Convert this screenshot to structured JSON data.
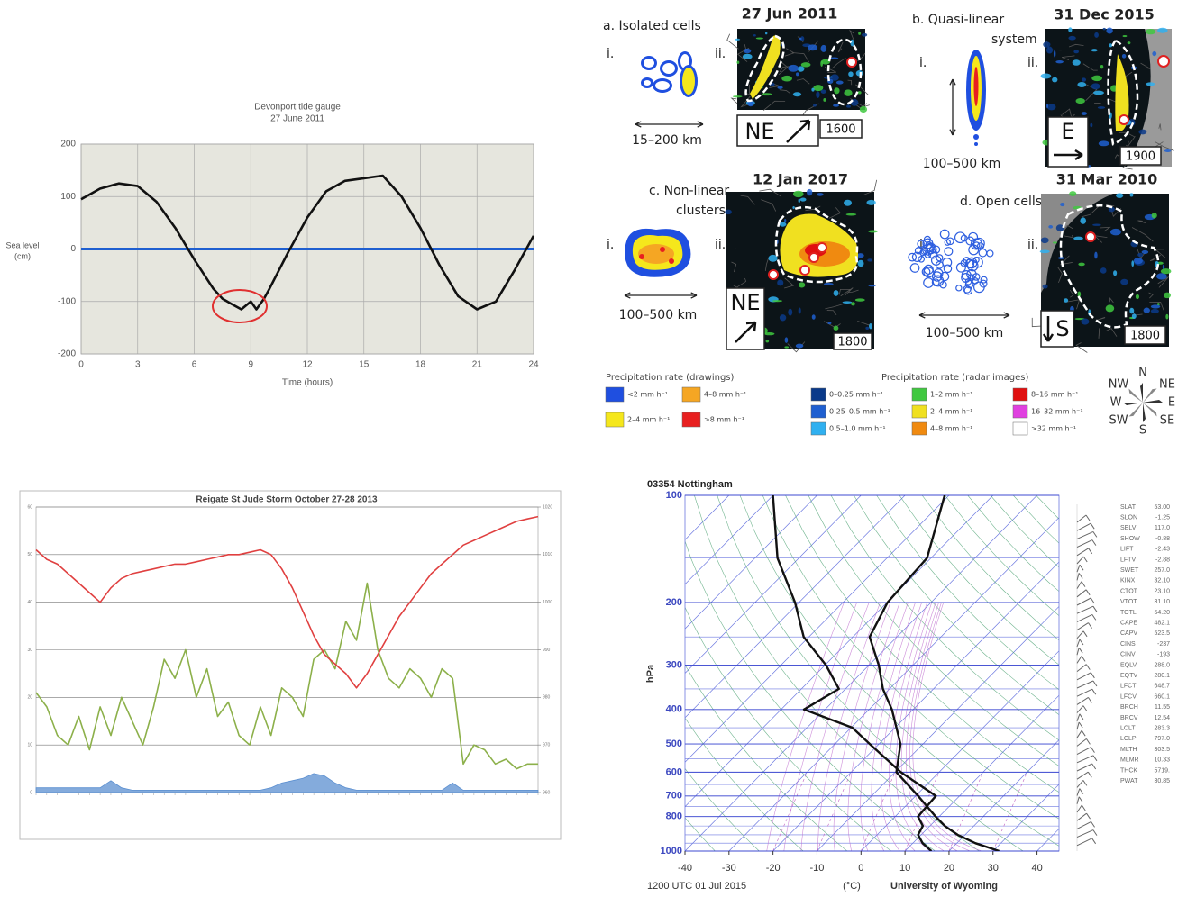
{
  "chart_data": [
    {
      "type": "line",
      "title": "Devonport tide gauge",
      "subtitle": "27 June 2011",
      "xlabel": "Time (hours)",
      "ylabel_lines": [
        "Sea level",
        "(cm)"
      ],
      "x": [
        0,
        1,
        2,
        3,
        4,
        5,
        6,
        7,
        7.5,
        8,
        8.5,
        9,
        9.3,
        9.7,
        10,
        11,
        12,
        13,
        14,
        15,
        16,
        17,
        18,
        19,
        20,
        21,
        22,
        23,
        24
      ],
      "series": [
        {
          "color": "#111111",
          "values": [
            95,
            115,
            125,
            120,
            90,
            40,
            -20,
            -75,
            -95,
            -105,
            -115,
            -100,
            -115,
            -95,
            -75,
            -5,
            60,
            110,
            130,
            135,
            140,
            100,
            40,
            -30,
            -90,
            -115,
            -100,
            -40,
            25
          ]
        }
      ],
      "reference_line": {
        "value": 0,
        "color": "#1f5fd0"
      },
      "xlim": [
        0,
        24
      ],
      "ylim": [
        -200,
        200
      ],
      "xticks": [
        0,
        3,
        6,
        9,
        12,
        15,
        18,
        21,
        24
      ],
      "yticks": [
        -200,
        -100,
        0,
        100,
        200
      ],
      "grid": true
    },
    {
      "type": "line",
      "title": "Reigate St Jude Storm October 27-28 2013",
      "categories": [
        null,
        null,
        null,
        null,
        null,
        null,
        null,
        null,
        null,
        null,
        null,
        null,
        null,
        null,
        null,
        null,
        null,
        null,
        null,
        null,
        null,
        null,
        null,
        null,
        null,
        null,
        null,
        null,
        null,
        null,
        null,
        null,
        null,
        null,
        null,
        null,
        null,
        null,
        null,
        null,
        null,
        null,
        null,
        null,
        null,
        null,
        null,
        null
      ],
      "series": [
        {
          "color": "#8cb04a",
          "values": [
            21,
            18,
            12,
            10,
            16,
            9,
            18,
            12,
            20,
            15,
            10,
            18,
            28,
            24,
            30,
            20,
            26,
            16,
            19,
            12,
            10,
            18,
            12,
            22,
            20,
            16,
            28,
            30,
            26,
            36,
            32,
            44,
            30,
            24,
            22,
            26,
            24,
            20,
            26,
            24,
            6,
            10,
            9,
            6,
            7,
            5,
            6,
            6
          ]
        },
        {
          "color": "#e04040",
          "axis": "y2",
          "values": [
            1011,
            1009,
            1008,
            1006,
            1004,
            1002,
            1000,
            1003,
            1005,
            1006,
            1006.5,
            1007,
            1007.5,
            1008,
            1008,
            1008.5,
            1009,
            1009.5,
            1010,
            1010,
            1010.5,
            1011,
            1010,
            1007,
            1003,
            998,
            993,
            989,
            987,
            985,
            982,
            985,
            989,
            993,
            997,
            1000,
            1003,
            1006,
            1008,
            1010,
            1012,
            1013,
            1014,
            1015,
            1016,
            1017,
            1017.5,
            1018
          ]
        },
        {
          "color": "#5b8fd0",
          "fill": true,
          "values": [
            1,
            1,
            1,
            1,
            1,
            1,
            1,
            2.5,
            1,
            0.5,
            0.5,
            0.5,
            0.5,
            0.5,
            0.5,
            0.5,
            0.5,
            0.5,
            0.5,
            0.5,
            0.5,
            0.5,
            1,
            2,
            2.5,
            3,
            4,
            3.5,
            2,
            1,
            0.5,
            0.5,
            0.5,
            0.5,
            0.5,
            0.5,
            0.5,
            0.5,
            0.5,
            2,
            0.5,
            0.5,
            0.5,
            0.5,
            0.5,
            0.5,
            0.5,
            0.5
          ]
        }
      ],
      "ylim": [
        0,
        60
      ],
      "yticks": [
        0,
        10,
        20,
        30,
        40,
        50,
        60
      ],
      "y2lim": [
        960,
        1020
      ],
      "y2ticks": [
        960,
        970,
        980,
        990,
        1000,
        1010,
        1020
      ],
      "grid": true
    },
    {
      "type": "skewt",
      "title": "03354 Nottingham",
      "ylabel": "hPa",
      "xlabel": "(°C)",
      "footer_left": "1200 UTC 01 Jul 2015",
      "footer_right": "University of Wyoming",
      "y": [
        1000,
        950,
        900,
        850,
        800,
        700,
        600,
        500,
        450,
        400,
        350,
        300,
        250,
        200,
        150,
        100
      ],
      "series": [
        {
          "color": "#111111",
          "values": [
            31.4,
            24.2,
            18.3,
            13.4,
            9.2,
            0.6,
            -9.7,
            -15.1,
            -19.7,
            -24.8,
            -31.5,
            -37.8,
            -46.2,
            -49.9,
            -50.9,
            -61
          ]
        },
        {
          "color": "#111111",
          "values": [
            16,
            12.2,
            9.3,
            8.4,
            5.2,
            4.6,
            -8.7,
            -22.1,
            -29.7,
            -44.8,
            -41.5,
            -49.8,
            -61.2,
            -70.9,
            -84.9,
            -100
          ]
        }
      ],
      "xlim": [
        -40,
        45
      ],
      "ylim": [
        1000,
        100
      ],
      "log_y": true,
      "xticks": [
        -40,
        -30,
        -20,
        -10,
        0,
        10,
        20,
        30,
        40
      ],
      "yticks": [
        100,
        200,
        300,
        400,
        500,
        600,
        700,
        800,
        1000
      ],
      "grid": true
    }
  ],
  "sounding_indices": {
    "names": [
      "SLAT",
      "SLON",
      "SELV",
      "SHOW",
      "LIFT",
      "LFTV",
      "SWET",
      "KINX",
      "CTOT",
      "VTOT",
      "TOTL",
      "CAPE",
      "CAPV",
      "CINS",
      "CINV",
      "EQLV",
      "EQTV",
      "LFCT",
      "LFCV",
      "BRCH",
      "BRCV",
      "LCLT",
      "LCLP",
      "MLTH",
      "MLMR",
      "THCK",
      "PWAT"
    ],
    "values": [
      "53.00",
      "-1.25",
      "117.0",
      "-0.88",
      "-2.43",
      "-2.88",
      "257.0",
      "32.10",
      "23.10",
      "31.10",
      "54.20",
      "482.1",
      "523.5",
      "-237",
      "-193",
      "288.0",
      "280.1",
      "648.7",
      "660.1",
      "11.55",
      "12.54",
      "283.3",
      "797.0",
      "303.5",
      "10.33",
      "5719.",
      "30.85"
    ]
  },
  "storm_figure": {
    "panels": [
      {
        "title_lines": [
          "a. Isolated cells"
        ],
        "drawing_label": "i.",
        "radar_label": "ii.",
        "date": "27 Jun 2011",
        "scale": "15–200 km",
        "direction": "NE",
        "time": "1600"
      },
      {
        "title_lines": [
          "b. Quasi-linear",
          "system"
        ],
        "drawing_label": "i.",
        "radar_label": "ii.",
        "date": "31 Dec 2015",
        "scale": "100–500 km",
        "direction": "E",
        "time": "1900"
      },
      {
        "title_lines": [
          "c. Non-linear",
          "clusters"
        ],
        "drawing_label": "i.",
        "radar_label": "ii.",
        "date": "12 Jan 2017",
        "scale": "100–500 km",
        "direction": "NE",
        "time": "1800"
      },
      {
        "title_lines": [
          "d. Open cells"
        ],
        "drawing_label": "i.",
        "radar_label": "ii.",
        "date": "31 Mar 2010",
        "scale": "100–500 km",
        "direction": "S",
        "time": "1800"
      }
    ],
    "legend_drawings": {
      "title": "Precipitation rate (drawings)",
      "entries": [
        {
          "label": "<2 mm h⁻¹",
          "color": "#1f4fe0"
        },
        {
          "label": "2–4 mm h⁻¹",
          "color": "#f5e71c"
        },
        {
          "label": "4–8 mm h⁻¹",
          "color": "#f5a623"
        },
        {
          "label": ">8 mm h⁻¹",
          "color": "#e82020"
        }
      ]
    },
    "legend_radar": {
      "title": "Precipitation rate (radar images)",
      "entries": [
        {
          "label": "0–0.25 mm h⁻¹",
          "color": "#0a3a8a"
        },
        {
          "label": "0.25–0.5 mm h⁻¹",
          "color": "#1f5fd0"
        },
        {
          "label": "0.5–1.0 mm h⁻¹",
          "color": "#30b0f0"
        },
        {
          "label": "1–2 mm h⁻¹",
          "color": "#40c840"
        },
        {
          "label": "2–4 mm h⁻¹",
          "color": "#f0e020"
        },
        {
          "label": "4–8 mm h⁻¹",
          "color": "#f08a10"
        },
        {
          "label": "8–16 mm h⁻¹",
          "color": "#e01010"
        },
        {
          "label": "16–32 mm h⁻¹",
          "color": "#e040e0"
        },
        {
          "label": ">32 mm h⁻¹",
          "color": "#ffffff"
        }
      ]
    },
    "compass": [
      "N",
      "NE",
      "E",
      "SE",
      "S",
      "SW",
      "W",
      "NW"
    ]
  }
}
